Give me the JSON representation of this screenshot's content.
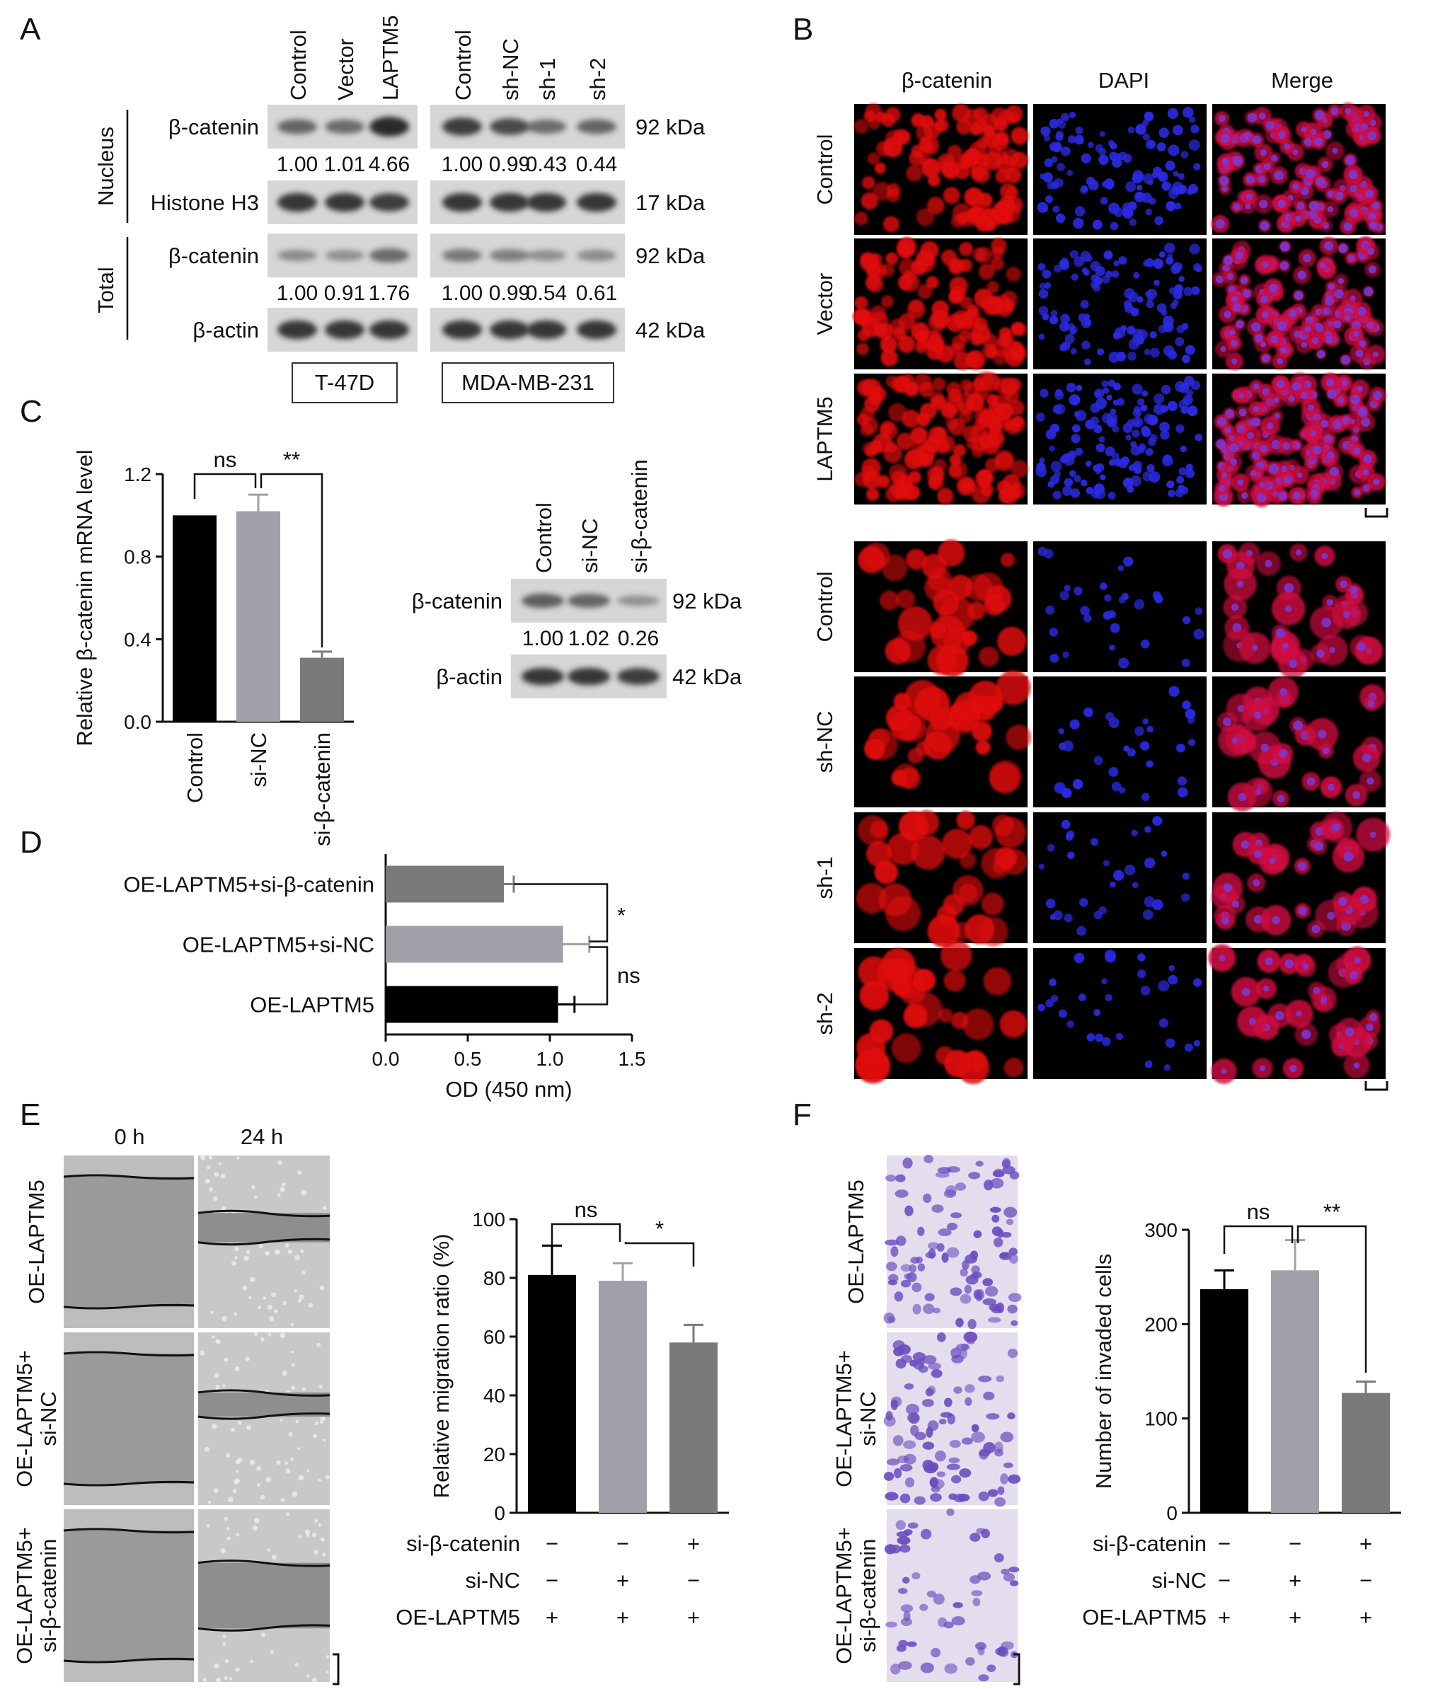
{
  "panels": {
    "A": {
      "letter": "A",
      "t47d_lanes": [
        "Control",
        "Vector",
        "LAPTM5"
      ],
      "mda_lanes": [
        "Control",
        "sh-NC",
        "sh-1",
        "sh-2"
      ],
      "sections": [
        "Nucleus",
        "Total"
      ],
      "rows": [
        {
          "label": "β-catenin",
          "kda": "92 kDa",
          "values": [
            "1.00",
            "1.01",
            "4.66",
            "1.00",
            "0.99",
            "0.43",
            "0.44"
          ],
          "intensity": [
            0.55,
            0.5,
            1.0,
            0.85,
            0.75,
            0.5,
            0.55
          ]
        },
        {
          "label": "Histone H3",
          "kda": "17 kDa",
          "intensity": [
            0.9,
            0.9,
            0.85,
            0.9,
            0.9,
            0.9,
            0.9
          ]
        },
        {
          "label": "β-catenin",
          "kda": "92 kDa",
          "values": [
            "1.00",
            "0.91",
            "1.76",
            "1.00",
            "0.99",
            "0.54",
            "0.61"
          ],
          "intensity": [
            0.25,
            0.22,
            0.5,
            0.4,
            0.35,
            0.22,
            0.25
          ]
        },
        {
          "label": "β-actin",
          "kda": "42 kDa",
          "intensity": [
            0.9,
            0.9,
            0.9,
            0.9,
            0.9,
            0.9,
            0.9
          ]
        }
      ],
      "cell_lines": [
        "T-47D",
        "MDA-MB-231"
      ]
    },
    "B": {
      "letter": "B",
      "columns": [
        "β-catenin",
        "DAPI",
        "Merge"
      ],
      "rows_top": [
        "Control",
        "Vector",
        "LAPTM5"
      ],
      "rows_bottom": [
        "Control",
        "sh-NC",
        "sh-1",
        "sh-2"
      ]
    },
    "C": {
      "letter": "C",
      "wb_lanes": [
        "Control",
        "si-NC",
        "si-β-catenin"
      ],
      "wb_rows": [
        {
          "label": "β-catenin",
          "kda": "92 kDa",
          "values": [
            "1.00",
            "1.02",
            "0.26"
          ],
          "intensity": [
            0.6,
            0.55,
            0.2
          ]
        },
        {
          "label": "β-actin",
          "kda": "42 kDa",
          "intensity": [
            0.9,
            0.9,
            0.85
          ]
        }
      ],
      "sig": [
        "ns",
        "**"
      ]
    },
    "D": {
      "letter": "D",
      "sig": [
        "*",
        "ns"
      ]
    },
    "E": {
      "letter": "E",
      "time_labels": [
        "0 h",
        "24 h"
      ],
      "row_labels": [
        [
          "OE-LAPTM5"
        ],
        [
          "OE-LAPTM5+",
          "si-NC"
        ],
        [
          "OE-LAPTM5+",
          "si-β-catenin"
        ]
      ],
      "sig": [
        "ns",
        "*"
      ],
      "table": [
        {
          "label": "si-β-catenin",
          "marks": [
            "−",
            "−",
            "+"
          ]
        },
        {
          "label": "si-NC",
          "marks": [
            "−",
            "+",
            "−"
          ]
        },
        {
          "label": "OE-LAPTM5",
          "marks": [
            "+",
            "+",
            "+"
          ]
        }
      ]
    },
    "F": {
      "letter": "F",
      "row_labels": [
        [
          "OE-LAPTM5"
        ],
        [
          "OE-LAPTM5+",
          "si-NC"
        ],
        [
          "OE-LAPTM5+",
          "si-β-catenin"
        ]
      ],
      "sig": [
        "ns",
        "**"
      ],
      "table": [
        {
          "label": "si-β-catenin",
          "marks": [
            "−",
            "−",
            "+"
          ]
        },
        {
          "label": "si-NC",
          "marks": [
            "−",
            "+",
            "−"
          ]
        },
        {
          "label": "OE-LAPTM5",
          "marks": [
            "+",
            "+",
            "+"
          ]
        }
      ]
    }
  },
  "chart_data": [
    {
      "panel": "C",
      "type": "bar",
      "categories": [
        "Control",
        "si-NC",
        "si-β-catenin"
      ],
      "values": [
        1.0,
        1.02,
        0.31
      ],
      "errors": [
        0,
        0.08,
        0.03
      ],
      "colors": [
        "#000000",
        "#a0a0a8",
        "#7a7a7a"
      ],
      "ylabel": "Relative β-catenin mRNA level",
      "ylim": [
        0,
        1.2
      ],
      "yticks": [
        "0.0",
        "0.4",
        "0.8",
        "1.2"
      ]
    },
    {
      "panel": "D",
      "type": "bar",
      "orientation": "horizontal",
      "categories": [
        "OE-LAPTM5+si-β-catenin",
        "OE-LAPTM5+si-NC",
        "OE-LAPTM5"
      ],
      "values": [
        0.72,
        1.08,
        1.05
      ],
      "errors": [
        0.06,
        0.16,
        0.1
      ],
      "colors": [
        "#7a7a7a",
        "#a0a0a8",
        "#000000"
      ],
      "xlabel": "OD (450 nm)",
      "xlim": [
        0,
        1.5
      ],
      "xticks": [
        "0.0",
        "0.5",
        "1.0",
        "1.5"
      ]
    },
    {
      "panel": "E",
      "type": "bar",
      "categories": [
        "OE-LAPTM5",
        "OE-LAPTM5+si-NC",
        "OE-LAPTM5+si-β-catenin"
      ],
      "values": [
        81,
        79,
        58
      ],
      "errors": [
        10,
        6,
        6
      ],
      "colors": [
        "#000000",
        "#a0a0a8",
        "#7a7a7a"
      ],
      "ylabel": "Relative migration ratio (%)",
      "ylim": [
        0,
        100
      ],
      "yticks": [
        "0",
        "20",
        "40",
        "60",
        "80",
        "100"
      ]
    },
    {
      "panel": "F",
      "type": "bar",
      "categories": [
        "OE-LAPTM5",
        "OE-LAPTM5+si-NC",
        "OE-LAPTM5+si-β-catenin"
      ],
      "values": [
        237,
        257,
        127
      ],
      "errors": [
        20,
        32,
        12
      ],
      "colors": [
        "#000000",
        "#a0a0a8",
        "#7a7a7a"
      ],
      "ylabel": "Number of invaded cells",
      "ylim": [
        0,
        300
      ],
      "yticks": [
        "0",
        "100",
        "200",
        "300"
      ]
    }
  ]
}
